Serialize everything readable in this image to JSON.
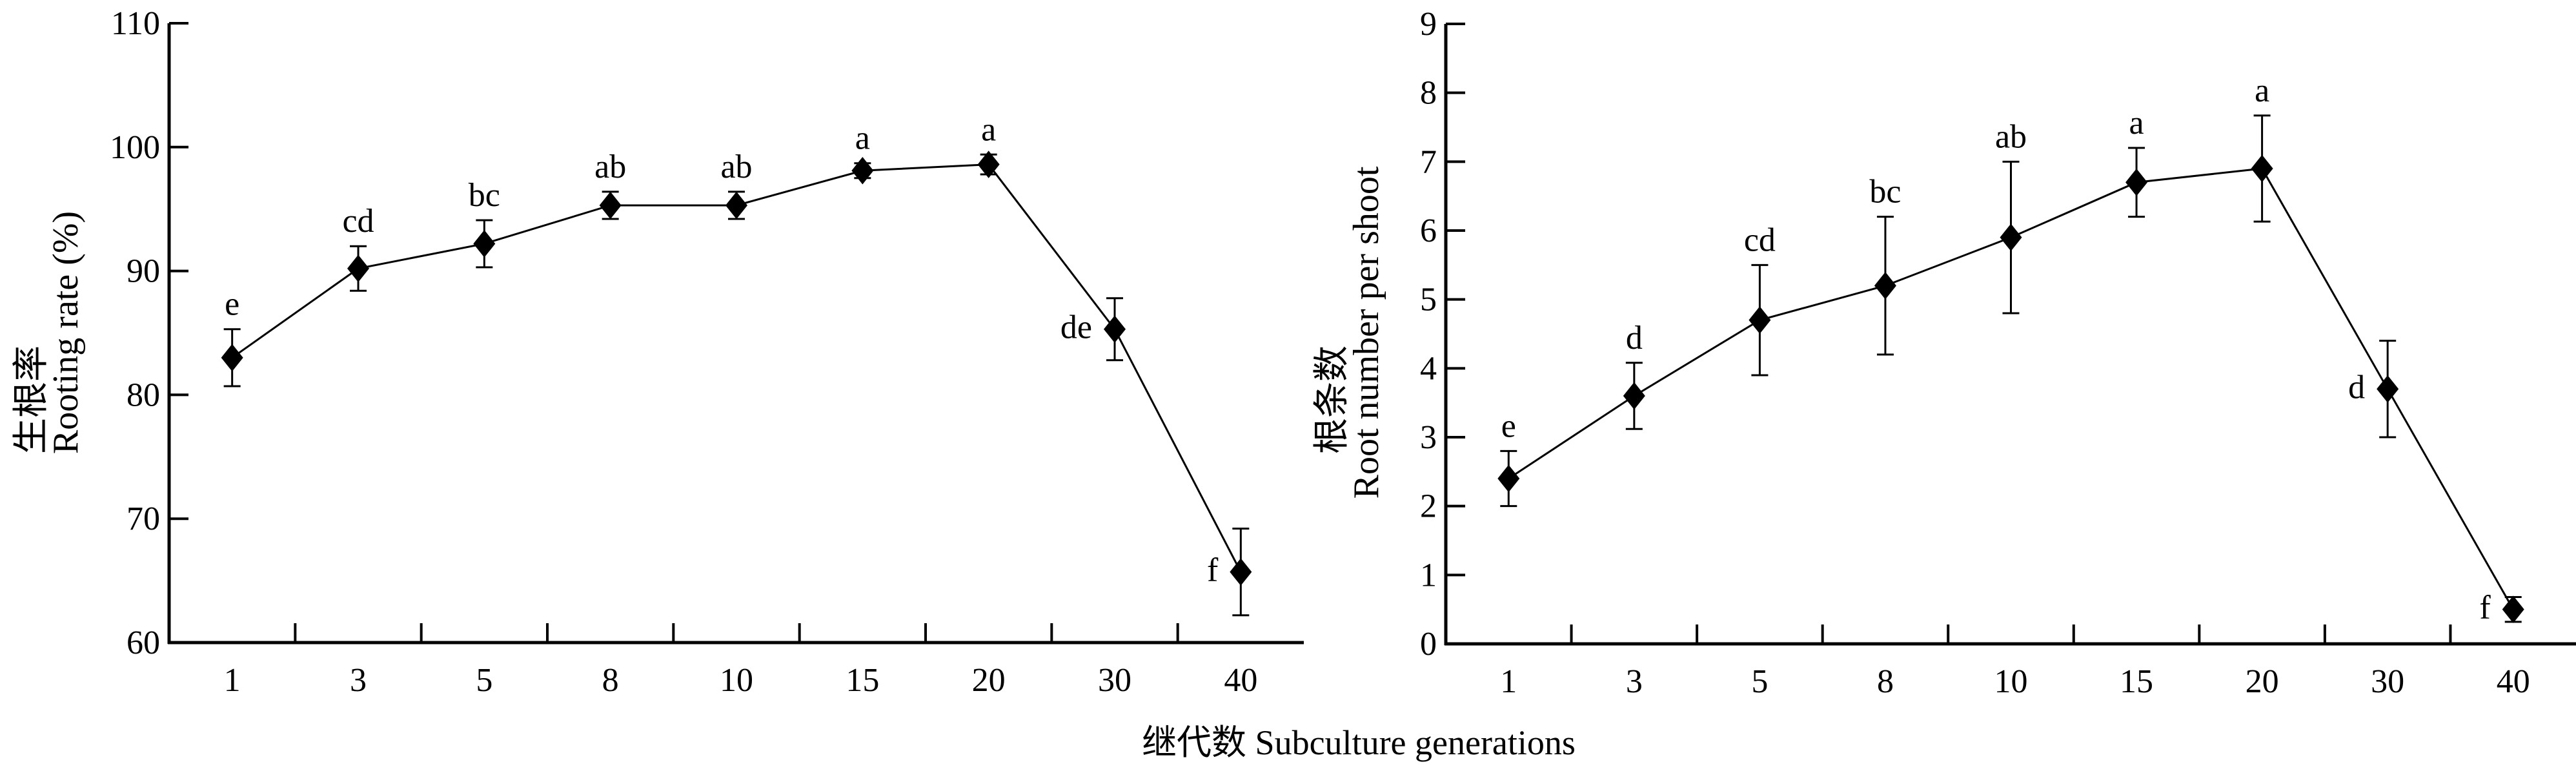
{
  "xlabel": "继代数  Subculture generations",
  "chart_data": [
    {
      "type": "line",
      "title": "",
      "xlabel": "继代数  Subculture generations",
      "ylabel_cn": "生根率",
      "ylabel": "Rooting rate (%)",
      "categories": [
        "1",
        "3",
        "5",
        "8",
        "10",
        "15",
        "20",
        "30",
        "40"
      ],
      "values": [
        83.0,
        90.2,
        92.2,
        95.3,
        95.3,
        98.1,
        98.6,
        85.3,
        65.7
      ],
      "errors": [
        2.3,
        1.8,
        1.9,
        1.1,
        1.1,
        0.6,
        0.8,
        2.5,
        3.5
      ],
      "letters": [
        "e",
        "cd",
        "bc",
        "ab",
        "ab",
        "a",
        "a",
        "de",
        "f"
      ],
      "ylim": [
        60,
        110
      ],
      "yticks": [
        "60",
        "70",
        "80",
        "90",
        "100",
        "110"
      ],
      "grid": false
    },
    {
      "type": "line",
      "title": "",
      "xlabel": "继代数  Subculture generations",
      "ylabel_cn": "根条数",
      "ylabel": "Root number per shoot",
      "categories": [
        "1",
        "3",
        "5",
        "8",
        "10",
        "15",
        "20",
        "30",
        "40"
      ],
      "values": [
        2.4,
        3.6,
        4.7,
        5.2,
        5.9,
        6.7,
        6.9,
        3.7,
        0.5
      ],
      "errors": [
        0.4,
        0.48,
        0.8,
        1.0,
        1.1,
        0.5,
        0.77,
        0.7,
        0.18
      ],
      "letters": [
        "e",
        "d",
        "cd",
        "bc",
        "ab",
        "a",
        "a",
        "d",
        "f"
      ],
      "ylim": [
        0,
        9
      ],
      "yticks": [
        "0",
        "1",
        "2",
        "3",
        "4",
        "5",
        "6",
        "7",
        "8",
        "9"
      ],
      "grid": false
    }
  ]
}
